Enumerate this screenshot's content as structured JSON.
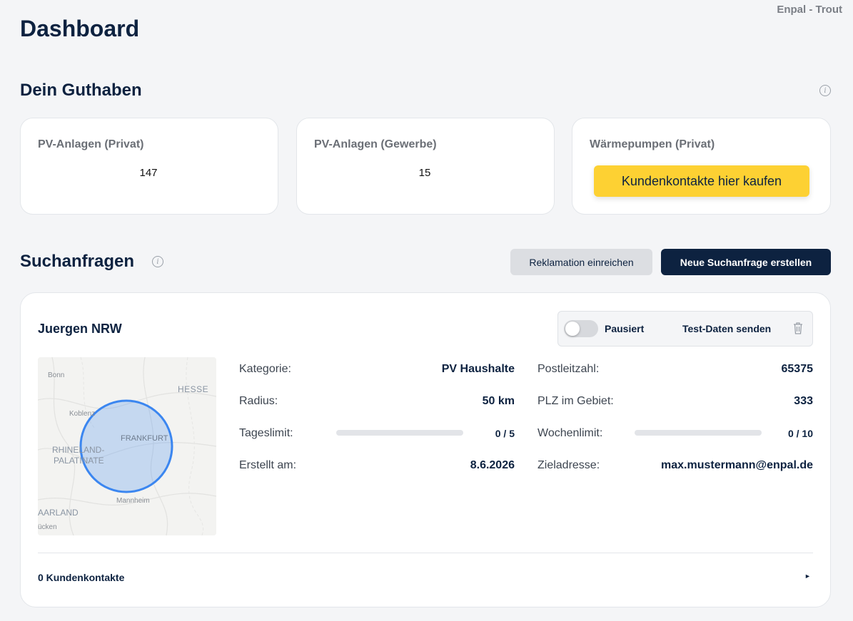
{
  "header": {
    "account": "Enpal - Trout",
    "title": "Dashboard"
  },
  "credit": {
    "title": "Dein Guthaben",
    "info_icon": "info-icon",
    "cards": [
      {
        "label": "PV-Anlagen (Privat)",
        "value": "147"
      },
      {
        "label": "PV-Anlagen (Gewerbe)",
        "value": "15"
      },
      {
        "label": "Wärmepumpen (Privat)",
        "button": "Kundenkontakte hier kaufen"
      }
    ],
    "button_color": "#fdd133"
  },
  "searches": {
    "title": "Suchanfragen",
    "info_icon": "info-icon",
    "complaint_button": "Reklamation einreichen",
    "new_button": "Neue Suchanfrage erstellen",
    "item": {
      "name": "Juergen NRW",
      "toggle_state": "off",
      "toggle_label": "Pausiert",
      "test_button": "Test-Daten senden",
      "trash_icon": "trash-icon",
      "map": {
        "labels": {
          "bonn": "Bonn",
          "hesse": "HESSE",
          "koblenz": "Koblenz",
          "frankfurt": "FRANKFURT",
          "rp1": "RHINELAND-",
          "rp2": "PALATINATE",
          "mannheim": "Mannheim",
          "saarland": "AARLAND",
          "bruecken": "ücken"
        },
        "radius_color": "#3b86f0"
      },
      "details": {
        "kategorie_label": "Kategorie:",
        "kategorie_value": "PV Haushalte",
        "radius_label": "Radius:",
        "radius_value": "50 km",
        "tageslimit_label": "Tageslimit:",
        "tageslimit_value": "0 / 5",
        "tageslimit_fraction": 0,
        "erstellt_label": "Erstellt am:",
        "erstellt_value": "8.6.2026",
        "plz_label": "Postleitzahl:",
        "plz_value": "65375",
        "plz_gebiet_label": "PLZ im Gebiet:",
        "plz_gebiet_value": "333",
        "wochenlimit_label": "Wochenlimit:",
        "wochenlimit_value": "0 / 10",
        "wochenlimit_fraction": 0,
        "ziel_label": "Zieladresse:",
        "ziel_value": "max.mustermann@enpal.de"
      },
      "contacts": "0 Kundenkontakte",
      "expand_icon": "triangle-right-icon"
    }
  }
}
